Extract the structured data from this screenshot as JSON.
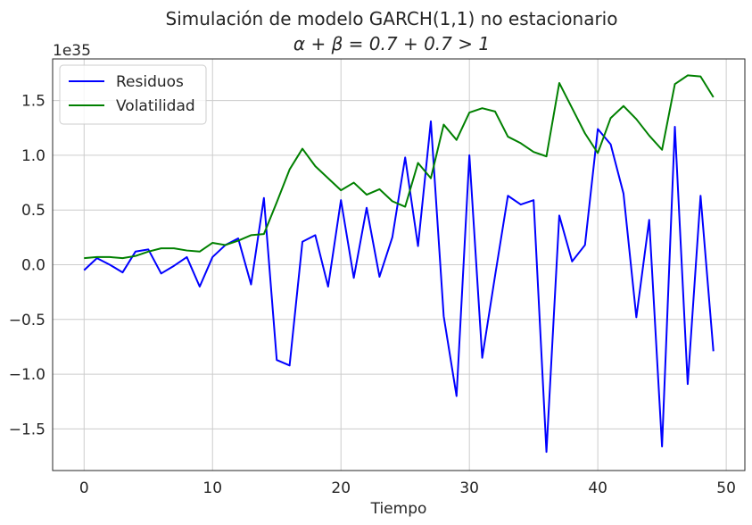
{
  "chart_data": {
    "type": "line",
    "title": "Simulación de modelo GARCH(1,1) no estacionario",
    "subtitle": "α + β = 0.7 + 0.7 > 1",
    "xlabel": "Tiempo",
    "ylabel": "",
    "offset_text": "1e35",
    "xlim": [
      -2.45,
      51.45
    ],
    "ylim": [
      -1.88,
      1.88
    ],
    "xticks": [
      0,
      10,
      20,
      30,
      40,
      50
    ],
    "yticks": [
      -1.5,
      -1.0,
      -0.5,
      0.0,
      0.5,
      1.0,
      1.5
    ],
    "ytick_labels": [
      "−1.5",
      "−1.0",
      "−0.5",
      "0.0",
      "0.5",
      "1.0",
      "1.5"
    ],
    "grid": true,
    "legend_position": "top-left",
    "x": [
      0,
      1,
      2,
      3,
      4,
      5,
      6,
      7,
      8,
      9,
      10,
      11,
      12,
      13,
      14,
      15,
      16,
      17,
      18,
      19,
      20,
      21,
      22,
      23,
      24,
      25,
      26,
      27,
      28,
      29,
      30,
      31,
      32,
      33,
      34,
      35,
      36,
      37,
      38,
      39,
      40,
      41,
      42,
      43,
      44,
      45,
      46,
      47,
      48,
      49
    ],
    "series": [
      {
        "name": "Residuos",
        "color": "#0000ff",
        "values": [
          -0.05,
          0.06,
          0.0,
          -0.07,
          0.12,
          0.14,
          -0.08,
          -0.01,
          0.07,
          -0.2,
          0.07,
          0.18,
          0.24,
          -0.18,
          0.61,
          -0.87,
          -0.92,
          0.21,
          0.27,
          -0.2,
          0.59,
          -0.12,
          0.52,
          -0.11,
          0.25,
          0.98,
          0.17,
          1.31,
          -0.47,
          -1.2,
          1.0,
          -0.85,
          -0.1,
          0.63,
          0.55,
          0.59,
          -1.71,
          0.45,
          0.03,
          0.18,
          1.24,
          1.1,
          0.65,
          -0.48,
          0.41,
          -1.66,
          1.26,
          -1.09,
          0.63,
          -0.79
        ]
      },
      {
        "name": "Volatilidad",
        "color": "#008000",
        "values": [
          0.06,
          0.07,
          0.07,
          0.06,
          0.08,
          0.12,
          0.15,
          0.15,
          0.13,
          0.12,
          0.2,
          0.18,
          0.22,
          0.27,
          0.28,
          0.57,
          0.87,
          1.06,
          0.9,
          0.79,
          0.68,
          0.75,
          0.64,
          0.69,
          0.58,
          0.53,
          0.93,
          0.79,
          1.28,
          1.14,
          1.39,
          1.43,
          1.4,
          1.17,
          1.11,
          1.03,
          0.99,
          1.66,
          1.43,
          1.2,
          1.02,
          1.34,
          1.45,
          1.33,
          1.18,
          1.05,
          1.65,
          1.73,
          1.72,
          1.53
        ]
      }
    ]
  }
}
